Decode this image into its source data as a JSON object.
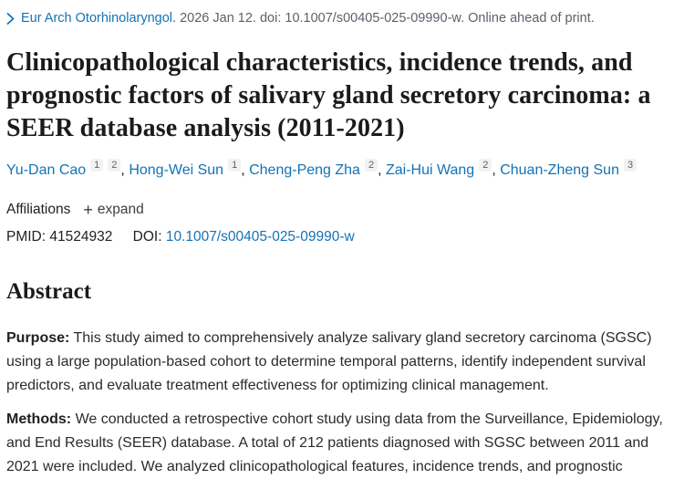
{
  "colors": {
    "link_blue": "#1373b5",
    "text_dark": "#212121",
    "muted_gray": "#5b616b",
    "sup_chip_bg": "#f1f2f3"
  },
  "citation": {
    "journal": "Eur Arch Otorhinolaryngol.",
    "details": "2026 Jan 12. doi: 10.1007/s00405-025-09990-w. Online ahead of print."
  },
  "title": "Clinicopathological characteristics, incidence trends, and prognostic factors of salivary gland secretory carcinoma: a SEER database analysis (2011-2021)",
  "authors": [
    {
      "name": "Yu-Dan Cao",
      "affiliations": [
        "1",
        "2"
      ]
    },
    {
      "name": "Hong-Wei Sun",
      "affiliations": [
        "1"
      ]
    },
    {
      "name": "Cheng-Peng Zha",
      "affiliations": [
        "2"
      ]
    },
    {
      "name": "Zai-Hui Wang",
      "affiliations": [
        "2"
      ]
    },
    {
      "name": "Chuan-Zheng Sun",
      "affiliations": [
        "3"
      ]
    }
  ],
  "affiliations_row": {
    "label": "Affiliations",
    "expand_label": "expand"
  },
  "identifiers": {
    "pmid_label": "PMID:",
    "pmid": "41524932",
    "doi_label": "DOI:",
    "doi": "10.1007/s00405-025-09990-w"
  },
  "abstract": {
    "heading": "Abstract",
    "paragraphs": [
      {
        "label": "Purpose:",
        "text": "This study aimed to comprehensively analyze salivary gland secretory carcinoma (SGSC) using a large population-based cohort to determine temporal patterns, identify independent survival predictors, and evaluate treatment effectiveness for optimizing clinical management."
      },
      {
        "label": "Methods:",
        "text": "We conducted a retrospective cohort study using data from the Surveillance, Epidemiology, and End Results (SEER) database. A total of 212 patients diagnosed with SGSC between 2011 and 2021 were included. We analyzed clinicopathological features, incidence trends, and prognostic"
      }
    ]
  }
}
